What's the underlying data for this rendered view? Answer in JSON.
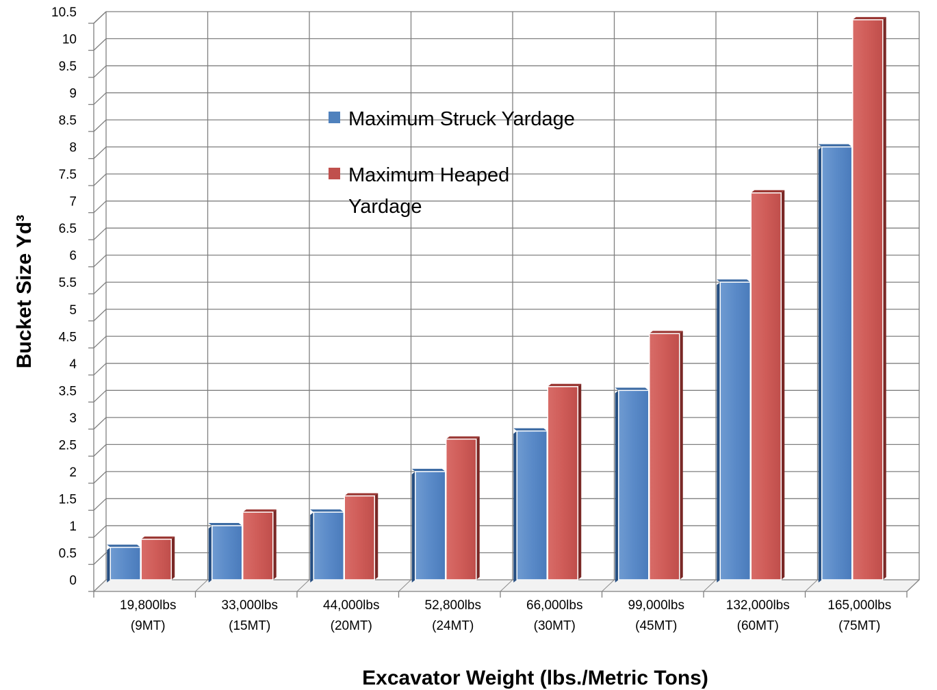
{
  "chart_data": {
    "type": "bar",
    "categories": [
      [
        "19,800lbs",
        "(9MT)"
      ],
      [
        "33,000lbs",
        "(15MT)"
      ],
      [
        "44,000lbs",
        "(20MT)"
      ],
      [
        "52,800lbs",
        "(24MT)"
      ],
      [
        "66,000lbs",
        "(30MT)"
      ],
      [
        "99,000lbs",
        "(45MT)"
      ],
      [
        "132,000lbs",
        "(60MT)"
      ],
      [
        "165,000lbs",
        "(75MT)"
      ]
    ],
    "series": [
      {
        "name": "Maximum Struck Yardage",
        "legend_lines": [
          "Maximum Struck Yardage"
        ],
        "color": "#4f81bd",
        "values": [
          0.6,
          1.0,
          1.25,
          2.0,
          2.75,
          3.5,
          5.5,
          8.0
        ]
      },
      {
        "name": "Maximum Heaped Yardage",
        "legend_lines": [
          "Maximum Heaped",
          "Yardage"
        ],
        "color": "#c0504d",
        "values": [
          0.75,
          1.25,
          1.55,
          2.6,
          3.57,
          4.55,
          7.15,
          10.35
        ]
      }
    ],
    "xlabel": "Excavator Weight (lbs./Metric Tons)",
    "ylabel": "Bucket Size Yd³",
    "ylim": [
      0,
      10.5
    ],
    "ytick_step": 0.5,
    "grid": true,
    "legend_position": "inside-top-center"
  }
}
